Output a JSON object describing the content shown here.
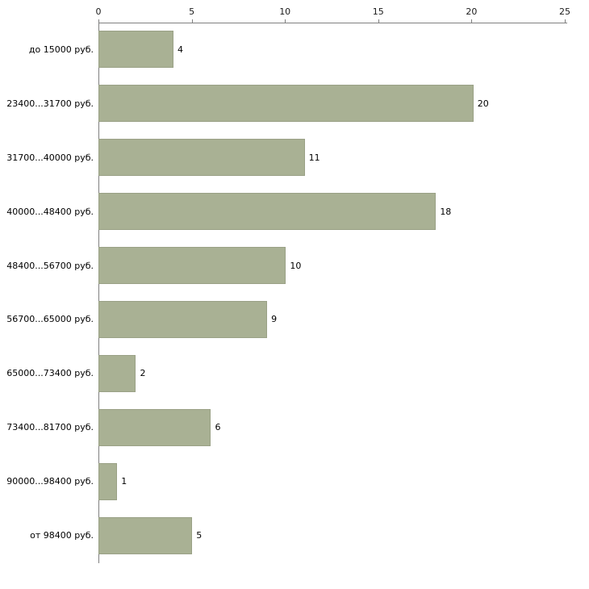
{
  "chart_data": {
    "type": "bar",
    "orientation": "horizontal",
    "title": "",
    "xlabel": "",
    "ylabel": "",
    "categories": [
      "до 15000 руб.",
      "23400...31700 руб.",
      "31700...40000 руб.",
      "40000...48400 руб.",
      "48400...56700 руб.",
      "56700...65000 руб.",
      "65000...73400 руб.",
      "73400...81700 руб.",
      "90000...98400 руб.",
      "от 98400 руб."
    ],
    "values": [
      4,
      20,
      11,
      18,
      10,
      9,
      2,
      6,
      1,
      5
    ],
    "xlim": [
      0,
      25
    ],
    "xticks": [
      0,
      5,
      10,
      15,
      20,
      25
    ],
    "grid": false,
    "legend_position": "none",
    "value_labels": true,
    "bar_color": "#a9b194",
    "bar_border_color": "#9aa186",
    "axis_color": "#808080",
    "text_color": "#000000",
    "background_color": "#ffffff"
  }
}
